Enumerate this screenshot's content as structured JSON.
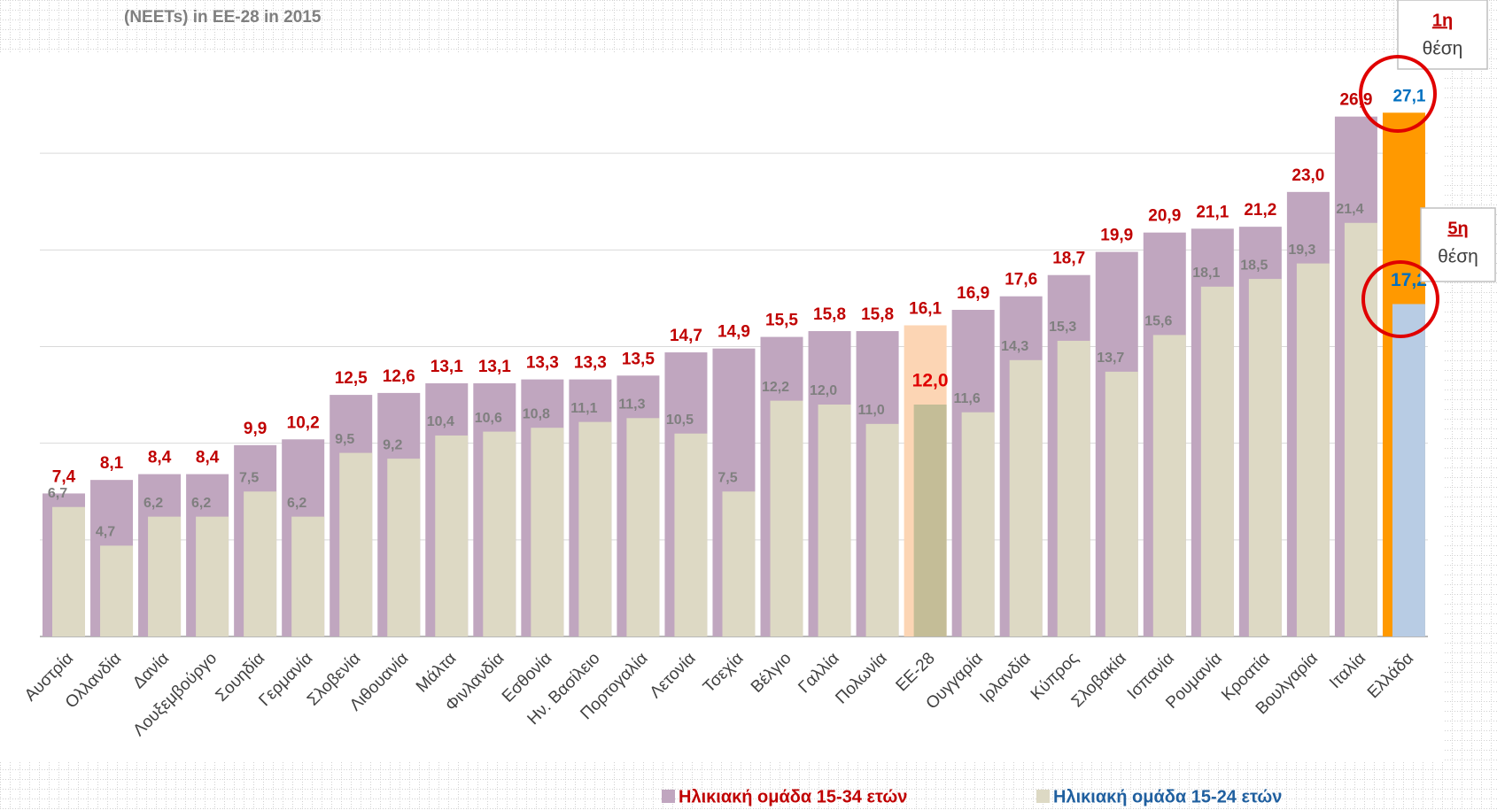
{
  "chart_data": {
    "type": "bar",
    "title": "(NEETs) in EE-28 in 2015",
    "categories": [
      "Αυστρία",
      "Ολλανδία",
      "Δανία",
      "Λουξεμβούργο",
      "Σουηδία",
      "Γερμανία",
      "Σλοβενία",
      "Λιθουανία",
      "Μάλτα",
      "Φινλανδία",
      "Εσθονία",
      "Ην. Βασίλειο",
      "Πορτογαλία",
      "Λετονία",
      "Τσεχία",
      "Βέλγιο",
      "Γαλλία",
      "Πολωνία",
      "ΕΕ-28",
      "Ουγγαρία",
      "Ιρλανδία",
      "Κύπρος",
      "Σλοβακία",
      "Ισπανία",
      "Ρουμανία",
      "Κροατία",
      "Βουλγαρία",
      "Ιταλία",
      "Ελλάδα"
    ],
    "series": [
      {
        "name": "Ηλικιακή ομάδα 15-34 ετών",
        "color": "#c0a6bf",
        "label_color": "#c00000",
        "special_colors": {
          "ΕΕ-28": "#fcd5b4",
          "Ελλάδα": "#ff9900"
        },
        "special_label_colors": {
          "Ελλάδα": "#0070c0"
        },
        "values": [
          7.4,
          8.1,
          8.4,
          8.4,
          9.9,
          10.2,
          12.5,
          12.6,
          13.1,
          13.1,
          13.3,
          13.3,
          13.5,
          14.7,
          14.9,
          15.5,
          15.8,
          15.8,
          16.1,
          16.9,
          17.6,
          18.7,
          19.9,
          20.9,
          21.1,
          21.2,
          23.0,
          26.9,
          27.1
        ],
        "value_labels": [
          "7,4",
          "8,1",
          "8,4",
          "8,4",
          "9,9",
          "10,2",
          "12,5",
          "12,6",
          "13,1",
          "13,1",
          "13,3",
          "13,3",
          "13,5",
          "14,7",
          "14,9",
          "15,5",
          "15,8",
          "15,8",
          "16,1",
          "16,9",
          "17,6",
          "18,7",
          "19,9",
          "20,9",
          "21,1",
          "21,2",
          "23,0",
          "26,9",
          "27,1"
        ]
      },
      {
        "name": "Ηλικιακή ομάδα 15-24 ετών",
        "color": "#ddd9c4",
        "label_color": "#7f7f7f",
        "special_colors": {
          "ΕΕ-28": "#c4bd97",
          "Ελλάδα": "#b8cce4"
        },
        "special_label_colors": {
          "ΕΕ-28": "#e00000",
          "Ελλάδα": "#0070c0"
        },
        "values": [
          6.7,
          4.7,
          6.2,
          6.2,
          7.5,
          6.2,
          9.5,
          9.2,
          10.4,
          10.6,
          10.8,
          11.1,
          11.3,
          10.5,
          7.5,
          12.2,
          12.0,
          11.0,
          12.0,
          11.6,
          14.3,
          15.3,
          13.7,
          15.6,
          18.1,
          18.5,
          19.3,
          21.4,
          17.2
        ],
        "value_labels": [
          "6,7",
          "4,7",
          "6,2",
          "6,2",
          "7,5",
          "6,2",
          "9,5",
          "9,2",
          "10,4",
          "10,6",
          "10,8",
          "11,1",
          "11,3",
          "10,5",
          "7,5",
          "12,2",
          "12,0",
          "11,0",
          "12,0",
          "11,6",
          "14,3",
          "15,3",
          "13,7",
          "15,6",
          "18,1",
          "18,5",
          "19,3",
          "21,4",
          "17,2"
        ]
      }
    ],
    "ylim": [
      0,
      30
    ],
    "yticks": [
      0,
      5,
      10,
      15,
      20,
      25
    ],
    "grid": true,
    "legend": "bottom",
    "annotations": [
      {
        "rank": "1η",
        "text": "θέση"
      },
      {
        "rank": "5η",
        "text": "θέση"
      }
    ]
  }
}
